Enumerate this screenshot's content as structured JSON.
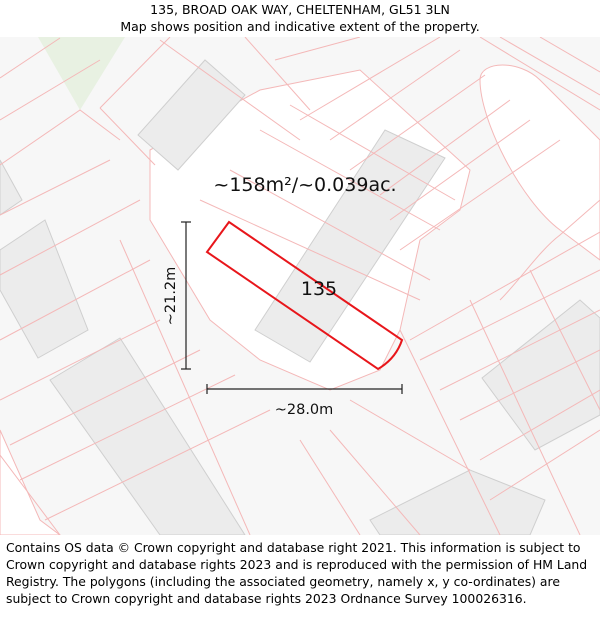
{
  "header": {
    "title": "135, BROAD OAK WAY, CHELTENHAM, GL51 3LN",
    "subtitle": "Map shows position and indicative extent of the property."
  },
  "map": {
    "area_label": "~158m²/~0.039ac.",
    "property_label": "135",
    "height_label": "~21.2m",
    "width_label": "~28.0m",
    "colors": {
      "boundary": "#f4b8b8",
      "property": "#e8161b",
      "building_fill": "#ececec",
      "building_stroke": "#cfcfcf",
      "green": "#e8f1e2",
      "background": "#f7f7f7"
    }
  },
  "footer": {
    "attribution": "Contains OS data © Crown copyright and database right 2021. This information is subject to Crown copyright and database rights 2023 and is reproduced with the permission of HM Land Registry. The polygons (including the associated geometry, namely x, y co-ordinates) are subject to Crown copyright and database rights 2023 Ordnance Survey 100026316."
  }
}
